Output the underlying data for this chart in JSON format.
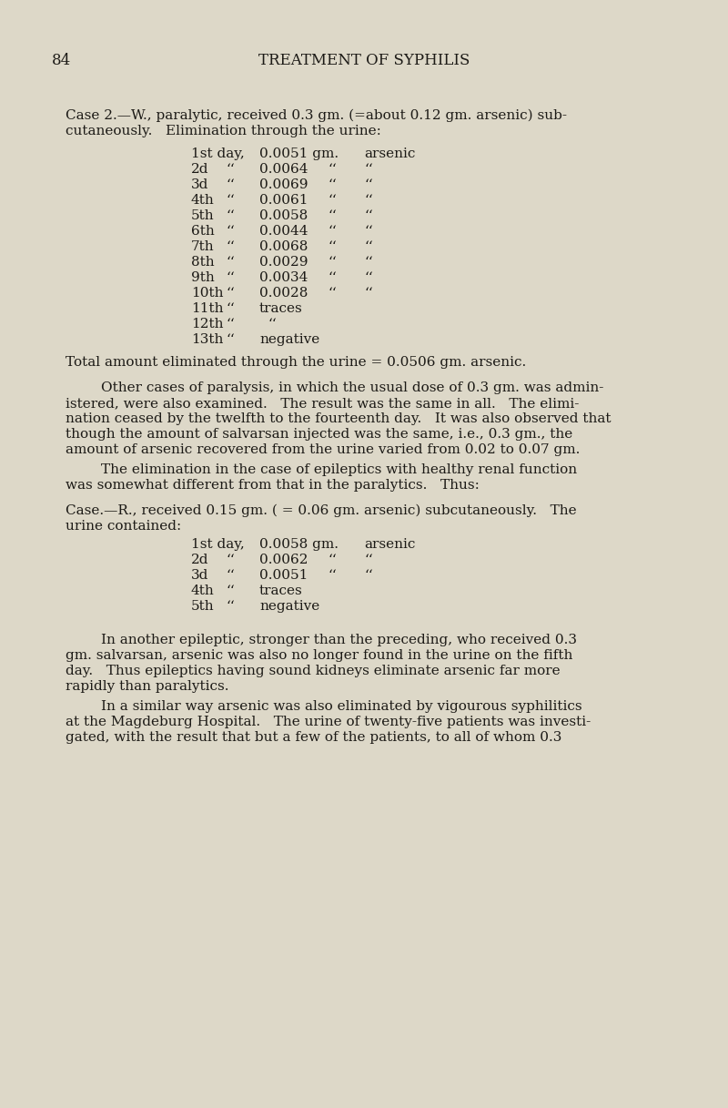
{
  "page_number": "84",
  "header": "TREATMENT OF SYPHILIS",
  "background_color": "#ddd8c8",
  "text_color": "#1c1a16",
  "ditto": "‘‘",
  "rows1": [
    [
      "1st day,",
      "0.0051 gm.",
      "arsenic"
    ],
    [
      "2d",
      "0.0064",
      ""
    ],
    [
      "3d",
      "0.0069",
      ""
    ],
    [
      "4th",
      "0.0061",
      ""
    ],
    [
      "5th",
      "0.0058",
      ""
    ],
    [
      "6th",
      "0.0044",
      ""
    ],
    [
      "7th",
      "0.0068",
      ""
    ],
    [
      "8th",
      "0.0029",
      ""
    ],
    [
      "9th",
      "0.0034",
      ""
    ],
    [
      "10th",
      "0.0028",
      ""
    ],
    [
      "11th",
      "traces",
      "none"
    ],
    [
      "12th",
      "",
      "ditto_only"
    ],
    [
      "13th",
      "negative",
      "none"
    ]
  ],
  "rows2": [
    [
      "1st day,",
      "0.0058 gm.",
      "arsenic"
    ],
    [
      "2d",
      "0.0062",
      ""
    ],
    [
      "3d",
      "0.0051",
      ""
    ],
    [
      "4th",
      "traces",
      "none"
    ],
    [
      "5th",
      "negative",
      "none"
    ]
  ]
}
